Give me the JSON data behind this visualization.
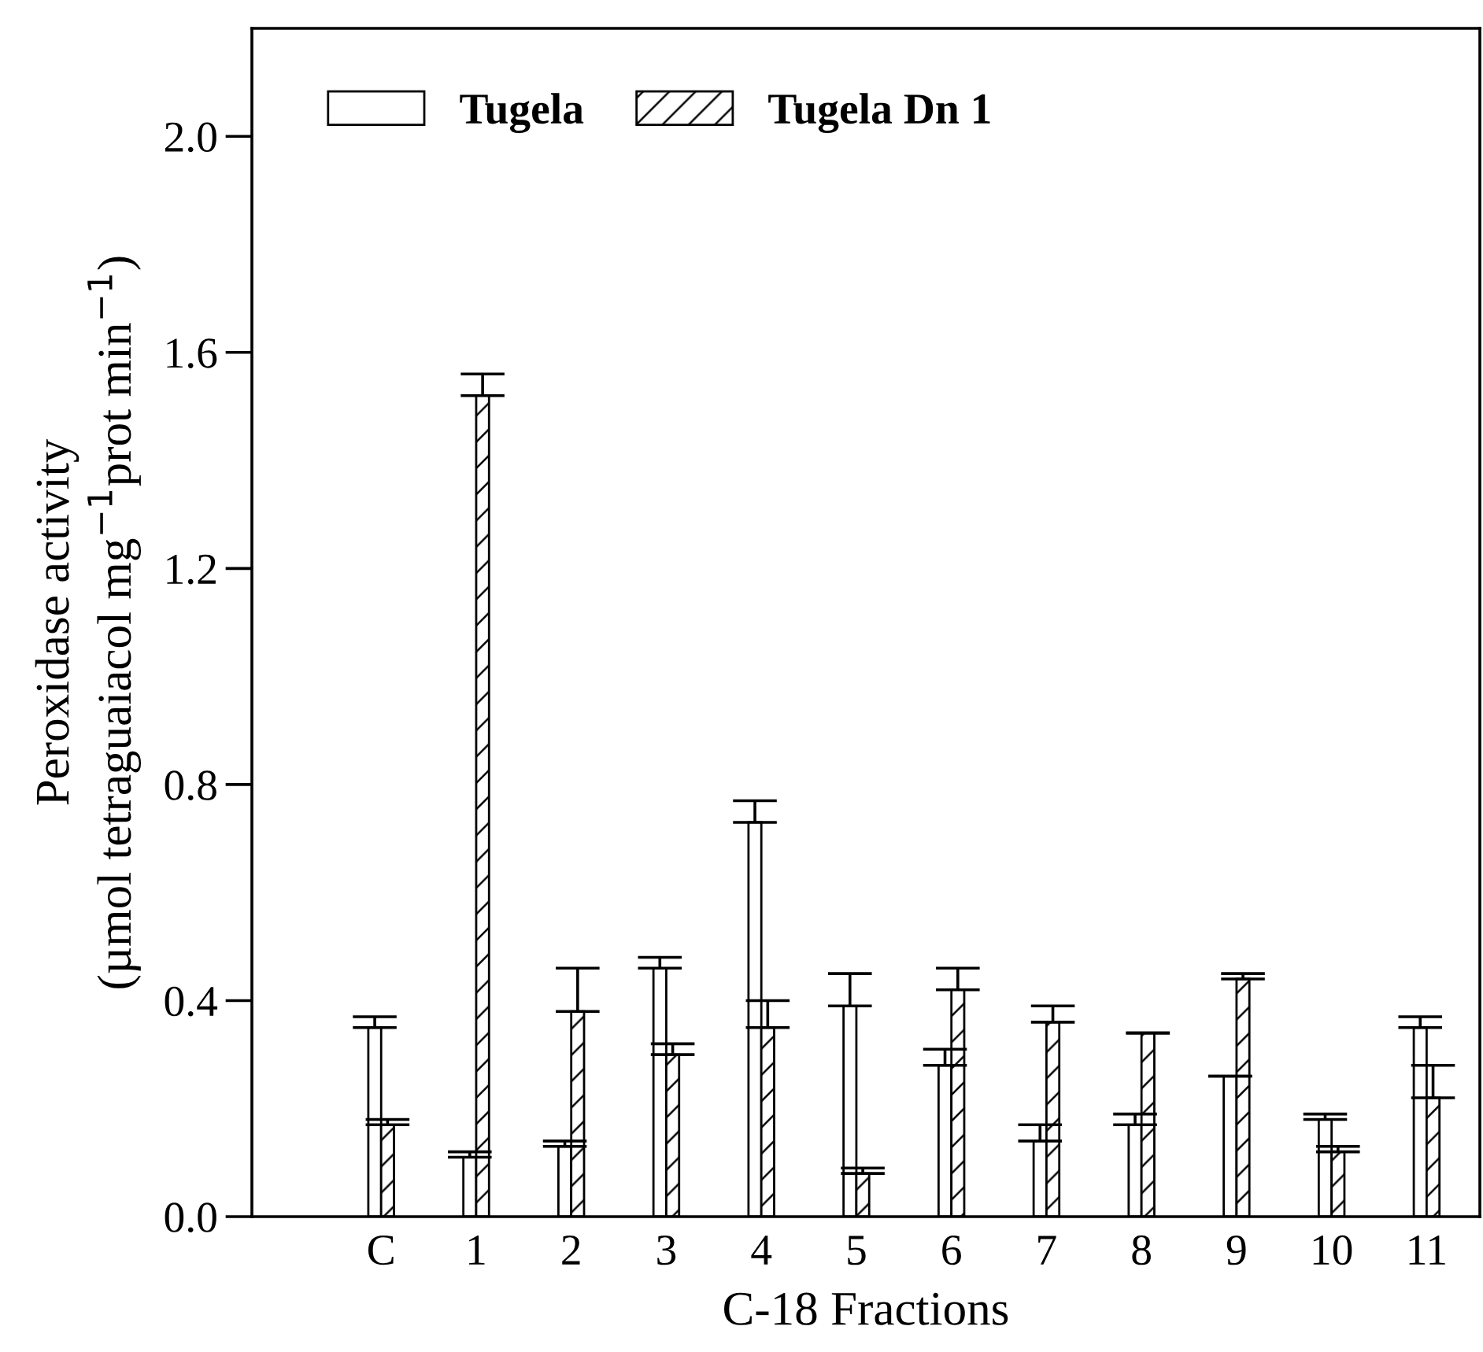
{
  "chart_data": {
    "type": "bar",
    "xlabel": "C-18 Fractions",
    "ylabel": "Peroxidase activity\n(µmol tetraguaiacol mg$^{−1}$prot min$^{−1}$)",
    "categories": [
      "C",
      "1",
      "2",
      "3",
      "4",
      "5",
      "6",
      "7",
      "8",
      "9",
      "10",
      "11"
    ],
    "series": [
      {
        "name": "Tugela",
        "color": "#ffffff",
        "values": [
          0.35,
          0.11,
          0.13,
          0.46,
          0.73,
          0.39,
          0.28,
          0.14,
          0.17,
          0.26,
          0.18,
          0.35
        ],
        "errors": [
          [
            0.35,
            0.37
          ],
          [
            0.11,
            0.12
          ],
          [
            0.13,
            0.14
          ],
          [
            0.46,
            0.48
          ],
          [
            0.73,
            0.77
          ],
          [
            0.39,
            0.45
          ],
          [
            0.28,
            0.31
          ],
          [
            0.14,
            0.17
          ],
          [
            0.17,
            0.19
          ],
          [
            0.26,
            0.26
          ],
          [
            0.18,
            0.19
          ],
          [
            0.35,
            0.37
          ]
        ]
      },
      {
        "name": "Tugela Dn 1",
        "color": "#000000",
        "values": [
          0.17,
          1.52,
          0.38,
          0.3,
          0.35,
          0.08,
          0.42,
          0.36,
          0.34,
          0.44,
          0.12,
          0.22
        ],
        "errors": [
          [
            0.17,
            0.18
          ],
          [
            1.52,
            1.56
          ],
          [
            0.38,
            0.46
          ],
          [
            0.3,
            0.32
          ],
          [
            0.35,
            0.4
          ],
          [
            0.08,
            0.09
          ],
          [
            0.42,
            0.46
          ],
          [
            0.36,
            0.39
          ],
          [
            0.34,
            0.34
          ],
          [
            0.44,
            0.45
          ],
          [
            0.12,
            0.13
          ],
          [
            0.22,
            0.28
          ]
        ]
      }
    ],
    "ylim": [
      0,
      2.2
    ],
    "yticks": [
      {
        "value": 0,
        "label": "0.0"
      },
      {
        "value": 0.4,
        "label": "0.4"
      },
      {
        "value": 0.8,
        "label": "0.8"
      },
      {
        "value": 1.2,
        "label": "1.2"
      },
      {
        "value": 1.6,
        "label": "1.6"
      },
      {
        "value": 2.0,
        "label": "2.0"
      }
    ],
    "grid": false,
    "legend": "top left"
  }
}
